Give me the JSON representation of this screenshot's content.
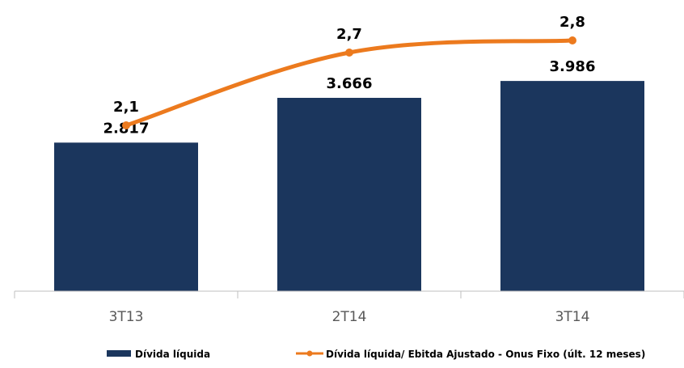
{
  "chart_data": {
    "type": "bar",
    "categories": [
      "3T13",
      "2T14",
      "3T14"
    ],
    "series": [
      {
        "name": "Dívida líquida",
        "type": "bar",
        "values": [
          2817,
          3666,
          3986
        ],
        "labels": [
          "2.817",
          "3.666",
          "3.986"
        ],
        "color": "#1b365d"
      },
      {
        "name": "Dívida líquida/ Ebitda Ajustado - Onus Fixo (últ. 12 meses)",
        "type": "line",
        "values": [
          2.1,
          2.7,
          2.8
        ],
        "labels": [
          "2,1",
          "2,7",
          "2,8"
        ],
        "color": "#ec7a1e"
      }
    ],
    "title": "",
    "xlabel": "",
    "ylabel": "",
    "ylim": [
      0,
      4500
    ],
    "grid": false,
    "legend": "bottom"
  }
}
